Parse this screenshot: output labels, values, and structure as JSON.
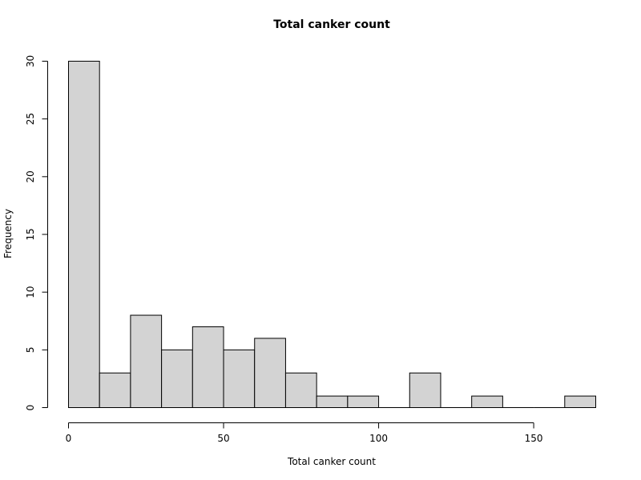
{
  "chart_data": {
    "type": "bar",
    "subtype": "histogram",
    "title": "Total canker count",
    "xlabel": "Total canker count",
    "ylabel": "Frequency",
    "bins": [
      {
        "from": 0,
        "to": 10,
        "count": 30
      },
      {
        "from": 10,
        "to": 20,
        "count": 3
      },
      {
        "from": 20,
        "to": 30,
        "count": 8
      },
      {
        "from": 30,
        "to": 40,
        "count": 5
      },
      {
        "from": 40,
        "to": 50,
        "count": 7
      },
      {
        "from": 50,
        "to": 60,
        "count": 5
      },
      {
        "from": 60,
        "to": 70,
        "count": 6
      },
      {
        "from": 70,
        "to": 80,
        "count": 3
      },
      {
        "from": 80,
        "to": 90,
        "count": 1
      },
      {
        "from": 90,
        "to": 100,
        "count": 1
      },
      {
        "from": 100,
        "to": 110,
        "count": 0
      },
      {
        "from": 110,
        "to": 120,
        "count": 3
      },
      {
        "from": 120,
        "to": 130,
        "count": 0
      },
      {
        "from": 130,
        "to": 140,
        "count": 1
      },
      {
        "from": 140,
        "to": 150,
        "count": 0
      },
      {
        "from": 150,
        "to": 160,
        "count": 0
      },
      {
        "from": 160,
        "to": 170,
        "count": 1
      }
    ],
    "x_ticks": [
      0,
      50,
      100,
      150
    ],
    "y_ticks": [
      0,
      5,
      10,
      15,
      20,
      25,
      30
    ],
    "xlim": [
      0,
      170
    ],
    "ylim": [
      0,
      30
    ],
    "grid": false,
    "bar_fill": "#d3d3d3",
    "bar_stroke": "#000000"
  }
}
